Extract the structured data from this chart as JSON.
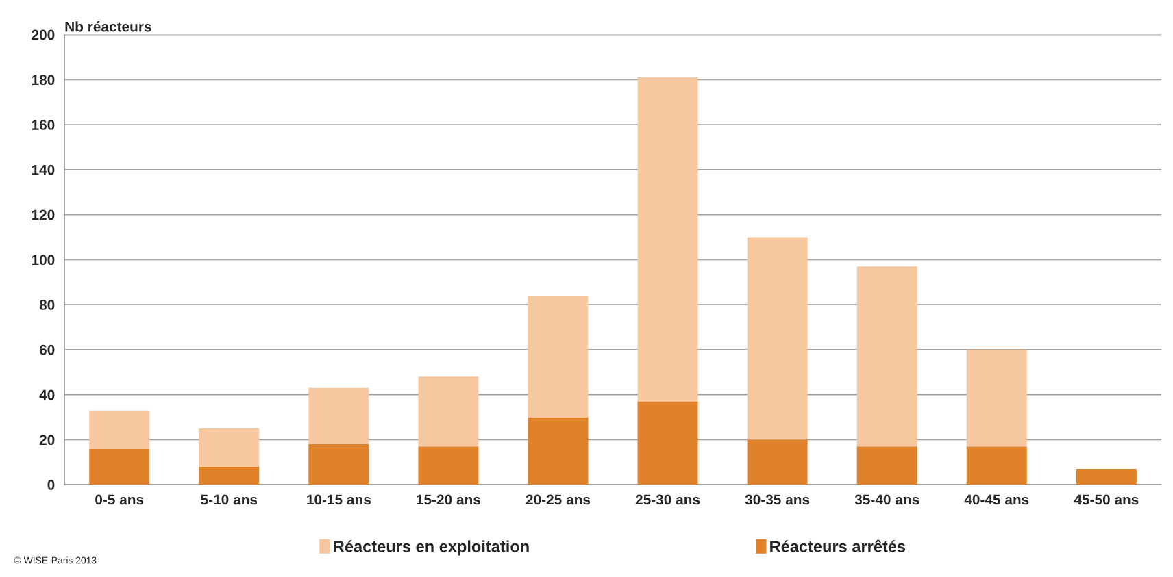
{
  "chart_data": {
    "type": "bar",
    "stacked": true,
    "ylabel": "Nb réacteurs",
    "categories": [
      "0-5 ans",
      "5-10 ans",
      "10-15 ans",
      "15-20 ans",
      "20-25 ans",
      "25-30 ans",
      "30-35 ans",
      "35-40 ans",
      "40-45 ans",
      "45-50 ans"
    ],
    "series": [
      {
        "name": "Réacteurs arrêtés",
        "color": "#e0822a",
        "values": [
          16,
          8,
          18,
          17,
          30,
          37,
          20,
          17,
          17,
          7
        ]
      },
      {
        "name": "Réacteurs en exploitation",
        "color": "#f7c7a0",
        "values": [
          17,
          17,
          25,
          31,
          54,
          144,
          90,
          80,
          43,
          null
        ]
      }
    ],
    "ylim": [
      0,
      200
    ],
    "yticks": [
      0,
      20,
      40,
      60,
      80,
      100,
      120,
      140,
      160,
      180,
      200
    ],
    "grid": "y",
    "legend": "bottom",
    "annotations": [
      "© WISE-Paris 2013"
    ]
  }
}
